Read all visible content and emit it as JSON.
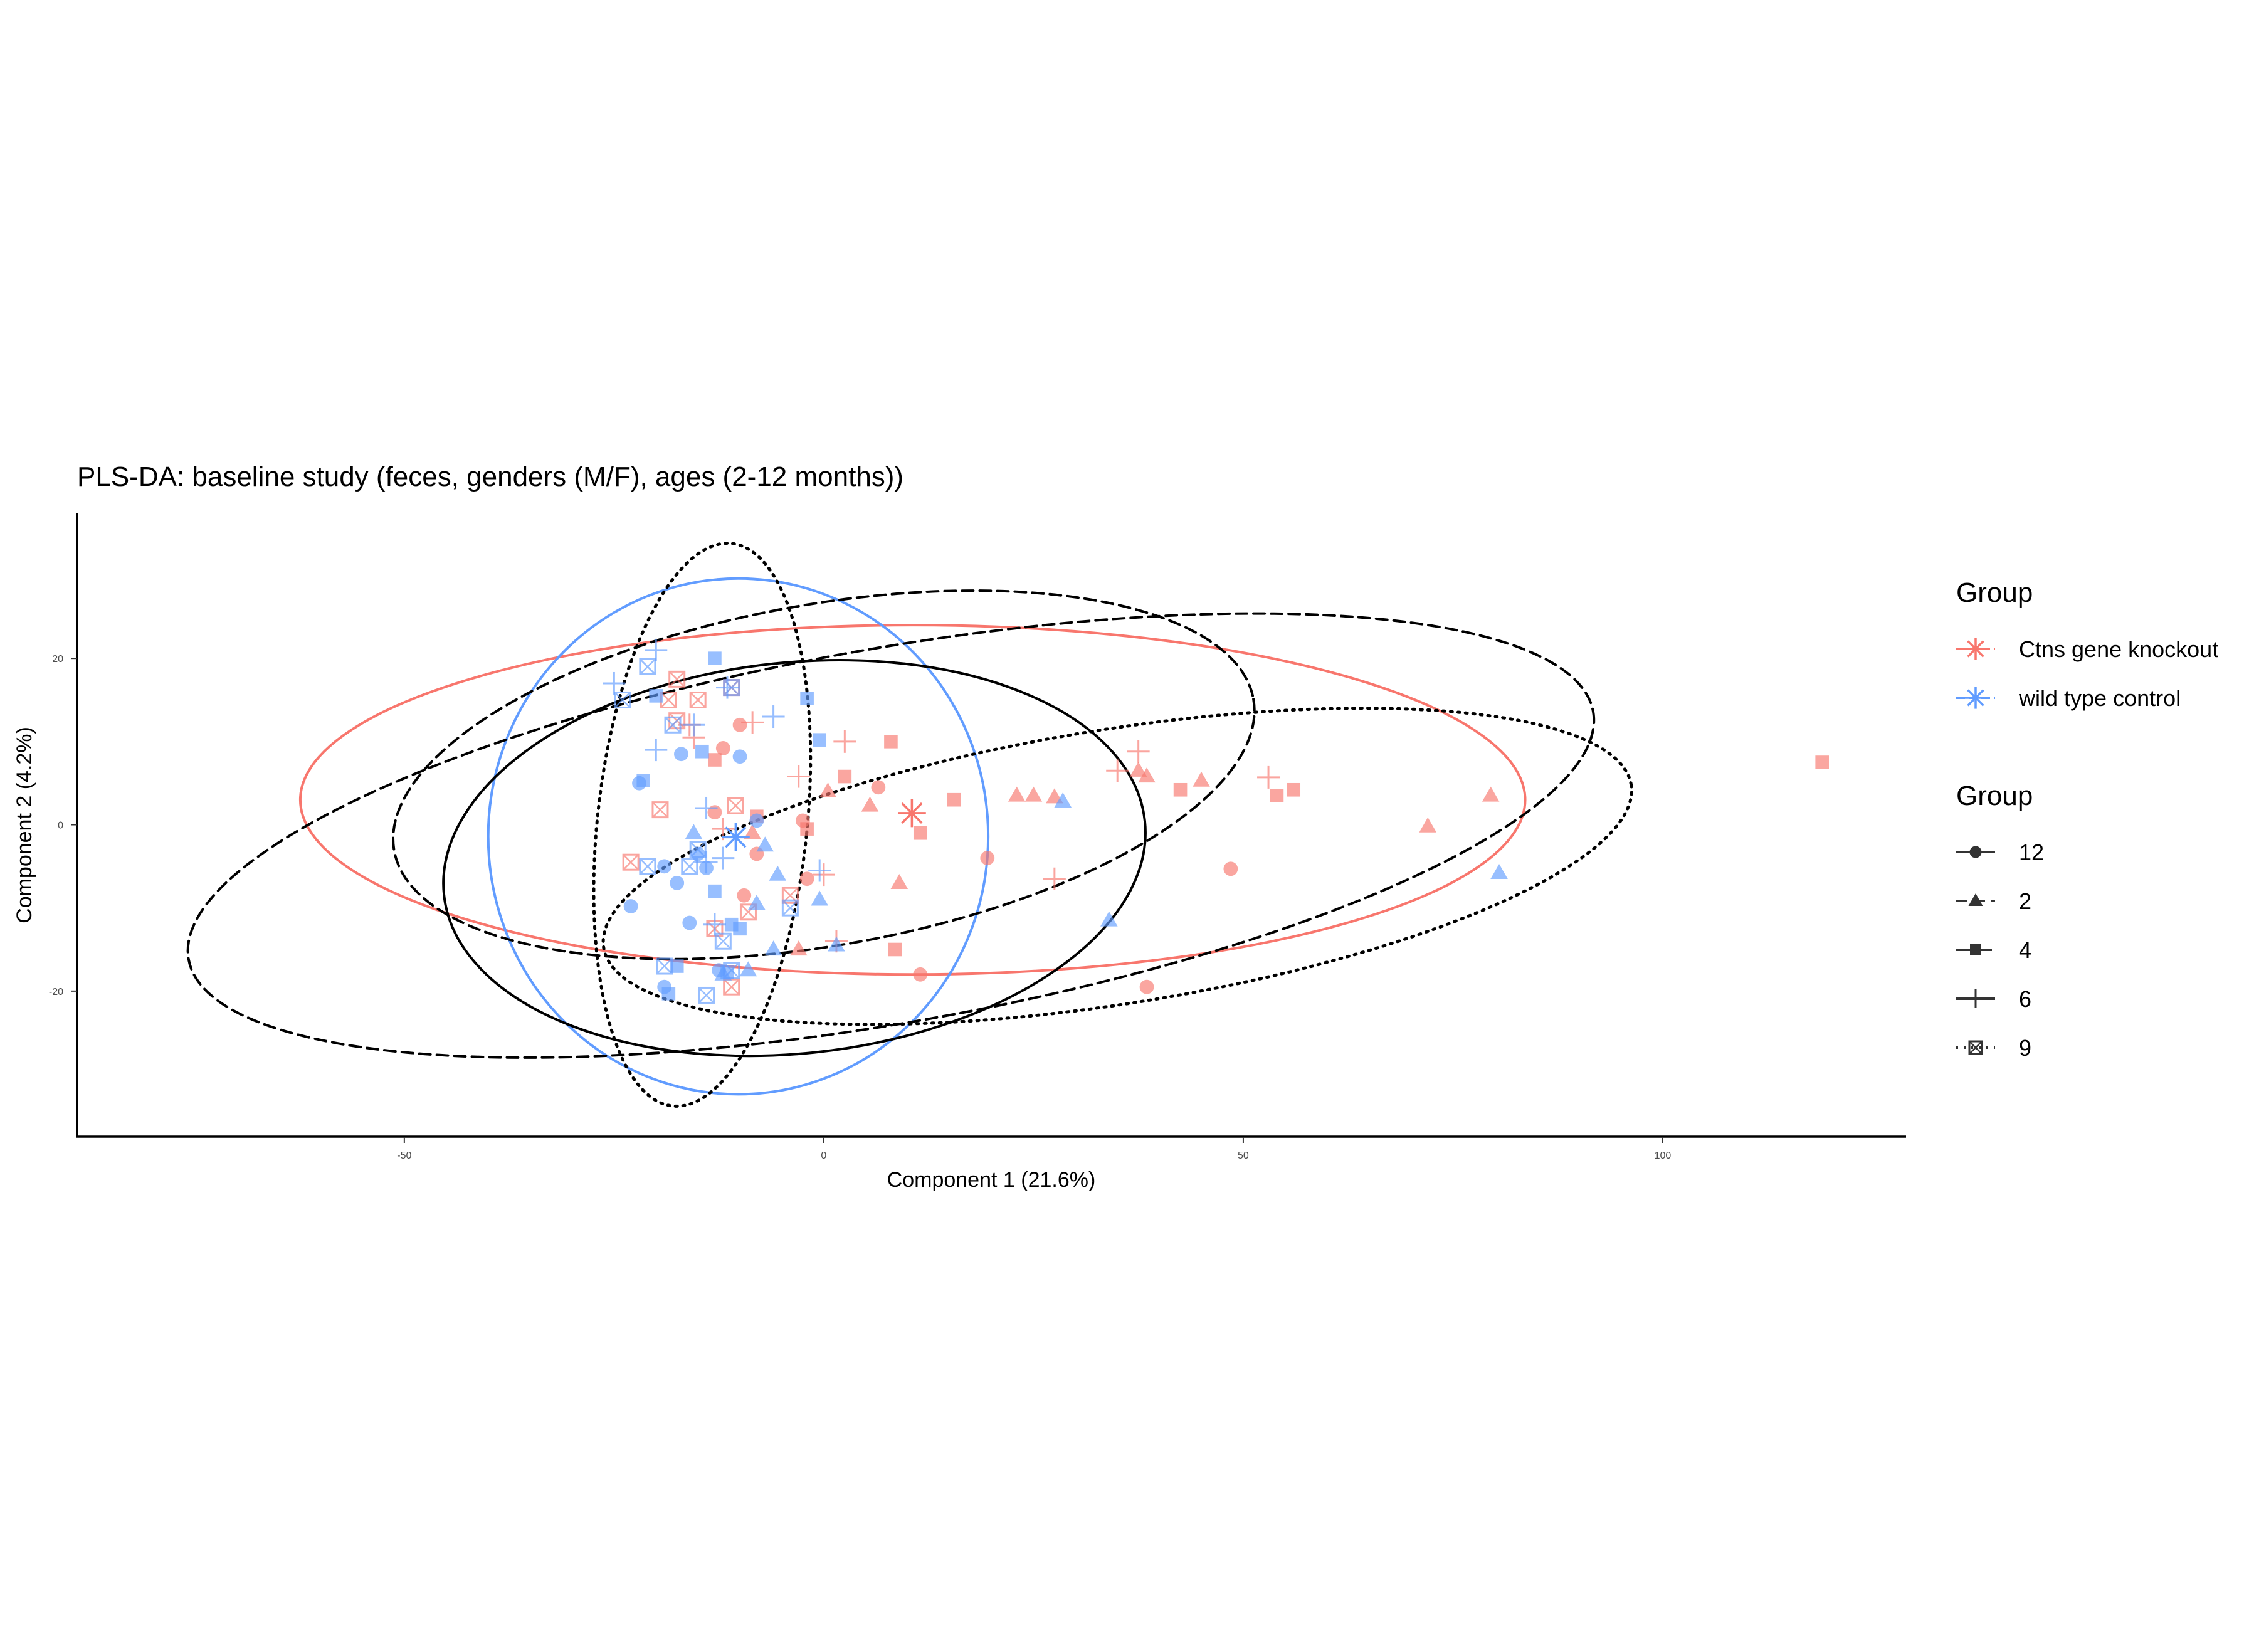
{
  "chart_data": {
    "type": "scatter",
    "title": "PLS-DA: baseline study (feces, genders (M/F), ages (2-12 months))",
    "xlabel": "Component 1 (21.6%)",
    "ylabel": "Component 2 (4.2%)",
    "xlim": [
      -89,
      129
    ],
    "ylim": [
      -37.5,
      37.5
    ],
    "x_ticks": [
      -50,
      0,
      50,
      100
    ],
    "y_ticks": [
      -20,
      0,
      20
    ],
    "grid": false,
    "legend_position": "right",
    "colors": {
      "knockout": "#F8766D",
      "wildtype": "#619CFF",
      "age_ellipse": "#000000"
    },
    "legends": [
      {
        "title": "Group",
        "entries": [
          {
            "key": "knockout",
            "label": "Ctns gene knockout"
          },
          {
            "key": "wildtype",
            "label": "wild type control"
          }
        ]
      },
      {
        "title": "Group",
        "entries": [
          {
            "key": "12",
            "label": "12",
            "shape": "circle",
            "linetype": "solid"
          },
          {
            "key": "2",
            "label": "2",
            "shape": "triangle",
            "linetype": "dashed"
          },
          {
            "key": "4",
            "label": "4",
            "shape": "square",
            "linetype": "longdash"
          },
          {
            "key": "6",
            "label": "6",
            "shape": "plus",
            "linetype": "solid"
          },
          {
            "key": "9",
            "label": "9",
            "shape": "square-cross",
            "linetype": "dotted"
          }
        ]
      }
    ],
    "ellipses": [
      {
        "group": "knockout",
        "cx": 10.6,
        "cy": 3.0,
        "rx": 73.0,
        "ry": 21.0,
        "angle": 0,
        "linetype": "solid"
      },
      {
        "group": "wildtype",
        "cx": -10.2,
        "cy": -1.4,
        "rx": 29.8,
        "ry": 31.0,
        "angle": 0,
        "linetype": "solid"
      },
      {
        "group": "12",
        "cx": -3.5,
        "cy": -4.0,
        "rx": 42.0,
        "ry": 23.5,
        "angle": -6,
        "linetype": "solid"
      },
      {
        "group": "2",
        "cx": 8.0,
        "cy": -1.3,
        "rx": 85.0,
        "ry": 22.5,
        "angle": -10,
        "linetype": "dashed"
      },
      {
        "group": "4",
        "cx": 0.0,
        "cy": 6.0,
        "rx": 52.0,
        "ry": 20.5,
        "angle": -10,
        "linetype": "dashed"
      },
      {
        "group": "6",
        "cx": 35.0,
        "cy": -5.0,
        "rx": 62.0,
        "ry": 16.5,
        "angle": -9,
        "linetype": "dotted"
      },
      {
        "group": "9",
        "cx": -14.5,
        "cy": 0.0,
        "rx": 12.5,
        "ry": 34.0,
        "angle": 6,
        "linetype": "dotted"
      }
    ],
    "centroids": [
      {
        "group": "knockout",
        "x": 10.5,
        "y": 1.4
      },
      {
        "group": "wildtype",
        "x": -10.5,
        "y": -1.5
      }
    ],
    "series": [
      {
        "group": "knockout",
        "age": "12",
        "shape": "circle",
        "points": [
          [
            -13,
            1.5
          ],
          [
            -10,
            12
          ],
          [
            -9.5,
            -8.5
          ],
          [
            -8,
            -3.5
          ],
          [
            -2,
            -6.5
          ],
          [
            -2.5,
            0.5
          ],
          [
            6.5,
            4.5
          ],
          [
            11.5,
            -18
          ],
          [
            19.5,
            -4
          ],
          [
            38.5,
            -19.5
          ],
          [
            48.5,
            -5.3
          ],
          [
            -12,
            9.2
          ]
        ]
      },
      {
        "group": "knockout",
        "age": "2",
        "shape": "triangle",
        "points": [
          [
            -8.5,
            -1
          ],
          [
            0.5,
            4
          ],
          [
            5.5,
            2.3
          ],
          [
            9,
            -7
          ],
          [
            23,
            3.5
          ],
          [
            25,
            3.5
          ],
          [
            27.5,
            3.3
          ],
          [
            37.5,
            6.5
          ],
          [
            38.5,
            5.8
          ],
          [
            45,
            5.3
          ],
          [
            72,
            -0.2
          ],
          [
            79.5,
            3.5
          ],
          [
            -3,
            -15
          ]
        ]
      },
      {
        "group": "knockout",
        "age": "4",
        "shape": "square",
        "points": [
          [
            -13,
            7.8
          ],
          [
            -8,
            1
          ],
          [
            -2,
            -0.5
          ],
          [
            2.5,
            5.8
          ],
          [
            8,
            10
          ],
          [
            11.5,
            -1
          ],
          [
            15.5,
            3
          ],
          [
            8.5,
            -15
          ],
          [
            42.5,
            4.2
          ],
          [
            54,
            3.5
          ],
          [
            56,
            4.2
          ],
          [
            119,
            7.5
          ]
        ]
      },
      {
        "group": "knockout",
        "age": "6",
        "shape": "plus",
        "points": [
          [
            -16,
            12
          ],
          [
            -15.5,
            10.5
          ],
          [
            -12,
            -0.5
          ],
          [
            -8.5,
            12.3
          ],
          [
            -3,
            5.8
          ],
          [
            0,
            -6
          ],
          [
            2.5,
            10
          ],
          [
            27.5,
            -6.5
          ],
          [
            35,
            6.5
          ],
          [
            37.5,
            8.8
          ],
          [
            53,
            5.7
          ],
          [
            1.5,
            -14
          ]
        ]
      },
      {
        "group": "knockout",
        "age": "9",
        "shape": "square-cross",
        "points": [
          [
            -17.5,
            17.5
          ],
          [
            -17.5,
            12.5
          ],
          [
            -18.5,
            15
          ],
          [
            -15,
            15
          ],
          [
            -11,
            16.5
          ],
          [
            -19.5,
            1.8
          ],
          [
            -10.5,
            2.3
          ],
          [
            -23,
            -4.5
          ],
          [
            -9,
            -10.5
          ],
          [
            -4,
            -8.5
          ],
          [
            -13,
            -12.5
          ],
          [
            -11,
            -19.5
          ]
        ]
      },
      {
        "group": "wildtype",
        "age": "12",
        "shape": "circle",
        "points": [
          [
            -22,
            5
          ],
          [
            -17,
            8.5
          ],
          [
            -10,
            8.2
          ],
          [
            -8,
            0.5
          ],
          [
            -19,
            -5
          ],
          [
            -17.5,
            -7
          ],
          [
            -14,
            -5.2
          ],
          [
            -15,
            -3.5
          ],
          [
            -16,
            -11.8
          ],
          [
            -23,
            -9.8
          ],
          [
            -19,
            -19.5
          ],
          [
            -12.5,
            -17.5
          ]
        ]
      },
      {
        "group": "wildtype",
        "age": "2",
        "shape": "triangle",
        "points": [
          [
            -15.5,
            -1
          ],
          [
            -8,
            -9.5
          ],
          [
            -7,
            -2.5
          ],
          [
            -5.5,
            -6
          ],
          [
            -0.5,
            -9
          ],
          [
            1.5,
            -14.5
          ],
          [
            -6,
            -15
          ],
          [
            -9,
            -17.5
          ],
          [
            -12,
            -18
          ],
          [
            28.5,
            2.8
          ],
          [
            34,
            -11.5
          ],
          [
            80.5,
            -5.8
          ]
        ]
      },
      {
        "group": "wildtype",
        "age": "4",
        "shape": "square",
        "points": [
          [
            -21.5,
            5.3
          ],
          [
            -20,
            15.5
          ],
          [
            -13,
            20
          ],
          [
            -14.5,
            8.8
          ],
          [
            -2,
            15.2
          ],
          [
            -0.5,
            10.2
          ],
          [
            -13,
            -8
          ],
          [
            -11,
            -12
          ],
          [
            -10,
            -12.5
          ],
          [
            -17.5,
            -17
          ],
          [
            -18.5,
            -20.3
          ],
          [
            -11.5,
            -17.7
          ]
        ]
      },
      {
        "group": "wildtype",
        "age": "6",
        "shape": "plus",
        "points": [
          [
            -25,
            17
          ],
          [
            -20,
            21
          ],
          [
            -20,
            9
          ],
          [
            -15.5,
            12
          ],
          [
            -14,
            2
          ],
          [
            -11.5,
            16.5
          ],
          [
            -6,
            13
          ],
          [
            -14,
            -4.5
          ],
          [
            -12,
            -4
          ],
          [
            -0.5,
            -5.5
          ],
          [
            -13,
            -12
          ]
        ]
      },
      {
        "group": "wildtype",
        "age": "9",
        "shape": "square-cross",
        "points": [
          [
            -21,
            19
          ],
          [
            -24,
            15
          ],
          [
            -18,
            12
          ],
          [
            -11,
            16.5
          ],
          [
            -15,
            -3
          ],
          [
            -16,
            -5
          ],
          [
            -21,
            -5
          ],
          [
            -4,
            -10
          ],
          [
            -12,
            -14
          ],
          [
            -19,
            -17
          ],
          [
            -14,
            -20.5
          ],
          [
            -11,
            -17.5
          ]
        ]
      }
    ]
  }
}
